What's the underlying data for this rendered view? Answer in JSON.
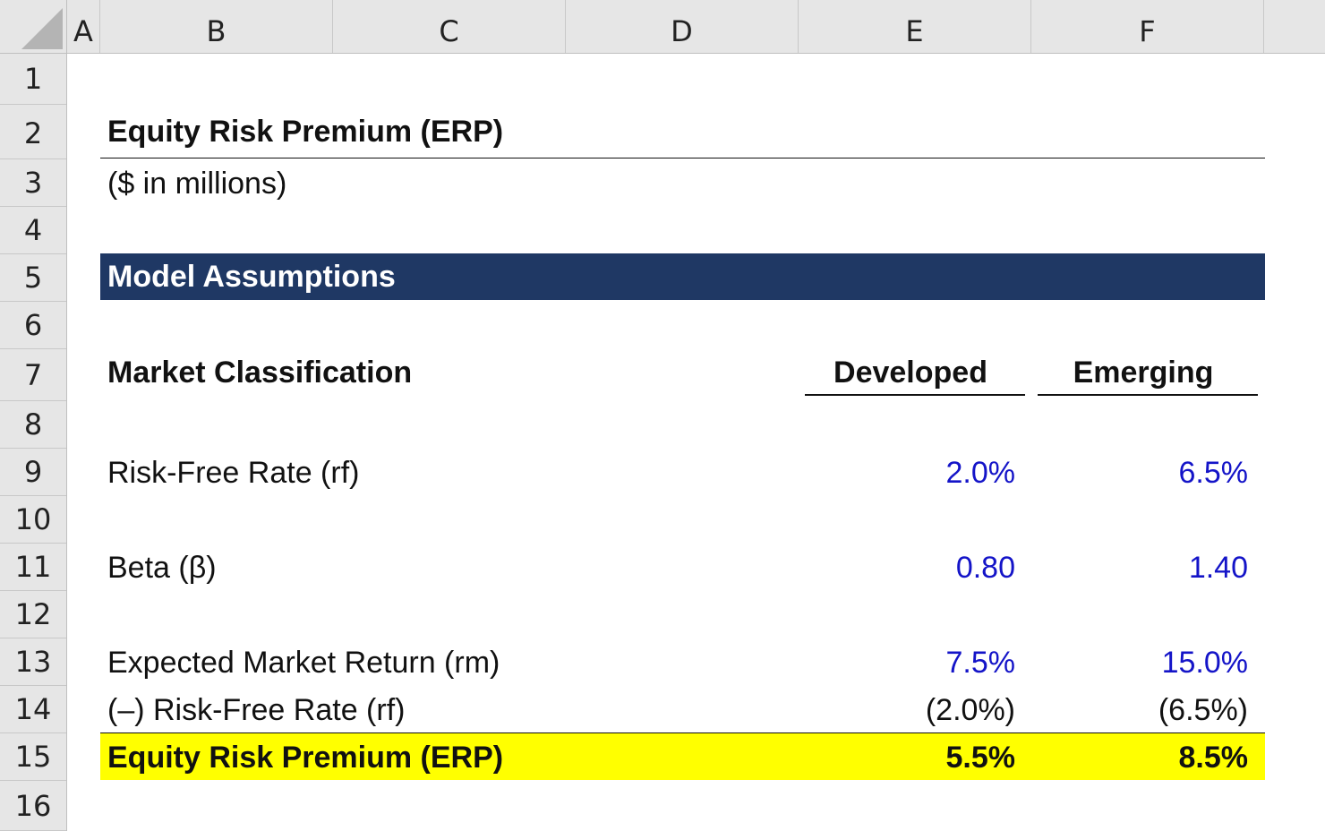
{
  "columns": [
    "A",
    "B",
    "C",
    "D",
    "E",
    "F"
  ],
  "rows": [
    "1",
    "2",
    "3",
    "4",
    "5",
    "6",
    "7",
    "8",
    "9",
    "10",
    "11",
    "12",
    "13",
    "14",
    "15",
    "16"
  ],
  "title": "Equity Risk Premium (ERP)",
  "subtitle": "($ in millions)",
  "section_header": "Model Assumptions",
  "table": {
    "row_label": "Market Classification",
    "col_headers": [
      "Developed",
      "Emerging"
    ],
    "risk_free_rate": {
      "label": "Risk-Free Rate (rf)",
      "developed": "2.0%",
      "emerging": "6.5%"
    },
    "beta": {
      "label": "Beta (β)",
      "developed": "0.80",
      "emerging": "1.40"
    },
    "expected_market_return": {
      "label": "Expected Market Return (rm)",
      "developed": "7.5%",
      "emerging": "15.0%"
    },
    "less_risk_free_rate": {
      "label": "(–) Risk-Free Rate (rf)",
      "developed": "(2.0%)",
      "emerging": "(6.5%)"
    },
    "equity_risk_premium": {
      "label": "Equity Risk Premium (ERP)",
      "developed": "5.5%",
      "emerging": "8.5%"
    }
  },
  "colors": {
    "section_fill": "#1f3864",
    "total_fill": "#ffff00",
    "input_text": "#1414c8",
    "header_fill": "#e6e6e6"
  }
}
